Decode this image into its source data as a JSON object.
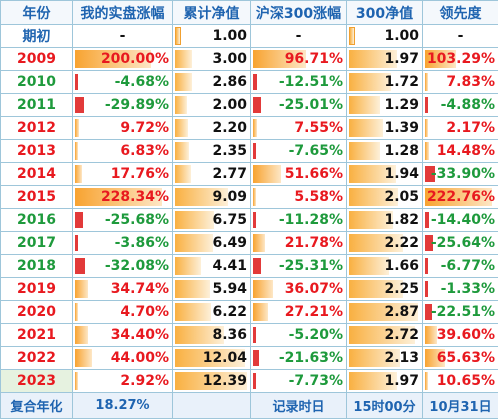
{
  "headers": [
    "年份",
    "我的实盘涨幅",
    "累计净值",
    "沪深300涨幅",
    "300净值",
    "领先度"
  ],
  "init_row": {
    "year": "期初",
    "my_gain": "-",
    "nav": "1.00",
    "hs_gain": "-",
    "hs_nav": "1.00",
    "lead": "-"
  },
  "rows": [
    {
      "year": "2009",
      "my_gain": "200.00%",
      "nav": "3.00",
      "hs_gain": "96.71%",
      "hs_nav": "1.97",
      "lead": "103.29%"
    },
    {
      "year": "2010",
      "my_gain": "-4.68%",
      "nav": "2.86",
      "hs_gain": "-12.51%",
      "hs_nav": "1.72",
      "lead": "7.83%"
    },
    {
      "year": "2011",
      "my_gain": "-29.89%",
      "nav": "2.00",
      "hs_gain": "-25.01%",
      "hs_nav": "1.29",
      "lead": "-4.88%"
    },
    {
      "year": "2012",
      "my_gain": "9.72%",
      "nav": "2.20",
      "hs_gain": "7.55%",
      "hs_nav": "1.39",
      "lead": "2.17%"
    },
    {
      "year": "2013",
      "my_gain": "6.83%",
      "nav": "2.35",
      "hs_gain": "-7.65%",
      "hs_nav": "1.28",
      "lead": "14.48%"
    },
    {
      "year": "2014",
      "my_gain": "17.76%",
      "nav": "2.77",
      "hs_gain": "51.66%",
      "hs_nav": "1.94",
      "lead": "-33.90%"
    },
    {
      "year": "2015",
      "my_gain": "228.34%",
      "nav": "9.09",
      "hs_gain": "5.58%",
      "hs_nav": "2.05",
      "lead": "222.76%"
    },
    {
      "year": "2016",
      "my_gain": "-25.68%",
      "nav": "6.75",
      "hs_gain": "-11.28%",
      "hs_nav": "1.82",
      "lead": "-14.40%"
    },
    {
      "year": "2017",
      "my_gain": "-3.86%",
      "nav": "6.49",
      "hs_gain": "21.78%",
      "hs_nav": "2.22",
      "lead": "-25.64%"
    },
    {
      "year": "2018",
      "my_gain": "-32.08%",
      "nav": "4.41",
      "hs_gain": "-25.31%",
      "hs_nav": "1.66",
      "lead": "-6.77%"
    },
    {
      "year": "2019",
      "my_gain": "34.74%",
      "nav": "5.94",
      "hs_gain": "36.07%",
      "hs_nav": "2.25",
      "lead": "-1.33%"
    },
    {
      "year": "2020",
      "my_gain": "4.70%",
      "nav": "6.22",
      "hs_gain": "27.21%",
      "hs_nav": "2.87",
      "lead": "-22.51%"
    },
    {
      "year": "2021",
      "my_gain": "34.40%",
      "nav": "8.36",
      "hs_gain": "-5.20%",
      "hs_nav": "2.72",
      "lead": "39.60%"
    },
    {
      "year": "2022",
      "my_gain": "44.00%",
      "nav": "12.04",
      "hs_gain": "-21.63%",
      "hs_nav": "2.13",
      "lead": "65.63%"
    },
    {
      "year": "2023",
      "my_gain": "2.92%",
      "nav": "12.39",
      "hs_gain": "-7.73%",
      "hs_nav": "1.97",
      "lead": "10.65%"
    }
  ],
  "footer": {
    "label": "复合年化",
    "cagr": "18.27%",
    "record_label": "记录时日",
    "time": "15时00分",
    "date": "10月31日"
  },
  "colors": {
    "positive": "#e8191f",
    "negative": "#1e9a3c",
    "header": "#1f64b0",
    "bar": "#f8a330",
    "border": "#9ec6da"
  }
}
